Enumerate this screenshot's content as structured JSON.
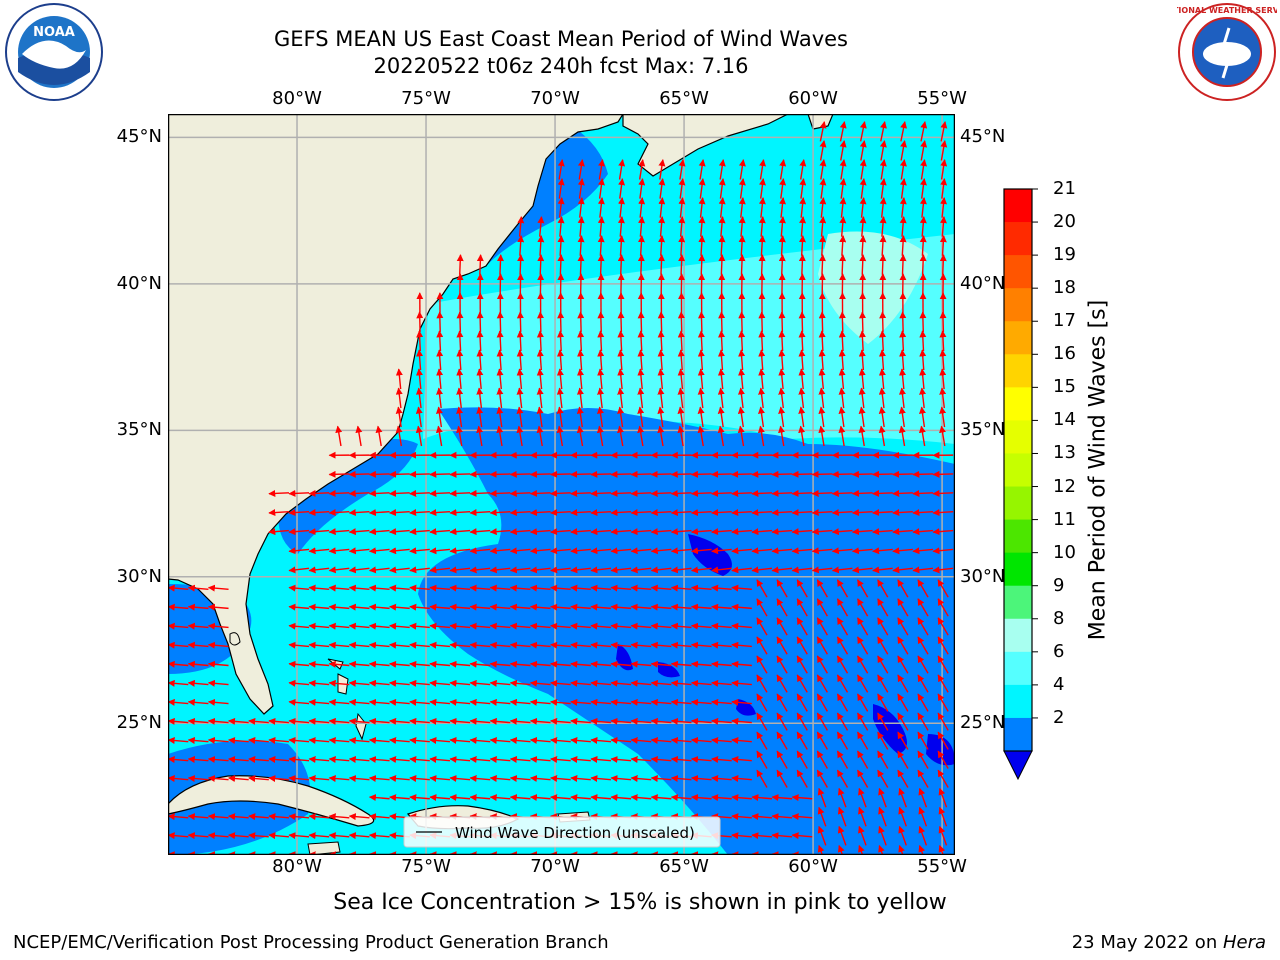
{
  "title": {
    "line1": "GEFS MEAN US East Coast Mean Period of Wind Waves",
    "line2": "20220522 t06z 240h fcst   Max: 7.16"
  },
  "logos": {
    "left": {
      "name": "NOAA",
      "text": "NOAA"
    },
    "right": {
      "name": "National Weather Service",
      "text": "NATIONAL WEATHER SERVICE"
    }
  },
  "map": {
    "lon_ticks": [
      "80°W",
      "75°W",
      "70°W",
      "65°W",
      "60°W",
      "55°W"
    ],
    "lat_ticks": [
      "45°N",
      "40°N",
      "35°N",
      "30°N",
      "25°N"
    ],
    "lon_range": [
      -85,
      -54.5
    ],
    "lat_range": [
      20.5,
      45.8
    ],
    "grid": true,
    "legend_label": "Wind Wave Direction (unscaled)",
    "colors": {
      "land": "#efeedc",
      "vector": "#ff0000",
      "grid": "#b0b0b0"
    }
  },
  "colorbar": {
    "label": "Mean Period of Wind Waves [s]",
    "ticks": [
      "21",
      "20",
      "19",
      "18",
      "17",
      "16",
      "15",
      "14",
      "13",
      "12",
      "11",
      "10",
      "9",
      "8",
      "6",
      "4",
      "2"
    ],
    "colors": [
      "#ff0000",
      "#ff2a00",
      "#ff5500",
      "#ff8000",
      "#ffaa00",
      "#ffd400",
      "#ffff00",
      "#e5ff00",
      "#c6ff00",
      "#96f500",
      "#4ce600",
      "#00e600",
      "#4cf57a",
      "#a8fff0",
      "#55ffff",
      "#00f5ff",
      "#0080ff"
    ],
    "extend_color": "#0000ee"
  },
  "caption": "Sea Ice Concentration > 15% is shown in pink to yellow",
  "footer": {
    "left": "NCEP/EMC/Verification Post Processing Product Generation Branch",
    "right_prefix": "23 May 2022 on ",
    "right_host": "Hera"
  }
}
